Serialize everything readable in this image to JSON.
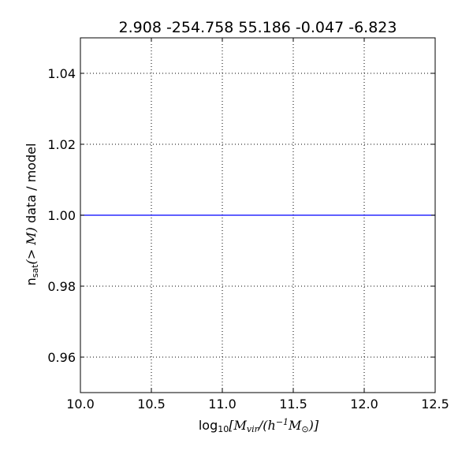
{
  "chart_data": {
    "type": "line",
    "title": "2.908 -254.758 55.186 -0.047 -6.823",
    "xlabel": {
      "prefix": "log",
      "sub": "10",
      "math": "[M",
      "math_sub": "vir",
      "math2": "/(h",
      "math_sup": "−1",
      "math3": "M",
      "math_sub2": "⊙",
      "math4": ")]"
    },
    "ylabel": {
      "prefix": "n",
      "sub": "sat",
      "math": "(> M)",
      "suffix": " data / model"
    },
    "xlim": [
      10.0,
      12.5
    ],
    "ylim": [
      0.95,
      1.05
    ],
    "xticks": [
      10.0,
      10.5,
      11.0,
      11.5,
      12.0,
      12.5
    ],
    "xtick_labels": [
      "10.0",
      "10.5",
      "11.0",
      "11.5",
      "12.0",
      "12.5"
    ],
    "yticks": [
      0.96,
      0.98,
      1.0,
      1.02,
      1.04
    ],
    "ytick_labels": [
      "0.96",
      "0.98",
      "1.00",
      "1.02",
      "1.04"
    ],
    "grid": true,
    "series": [
      {
        "color": "#0000ff",
        "x": [
          10.0,
          12.5
        ],
        "y": [
          1.0,
          1.0
        ]
      }
    ]
  }
}
